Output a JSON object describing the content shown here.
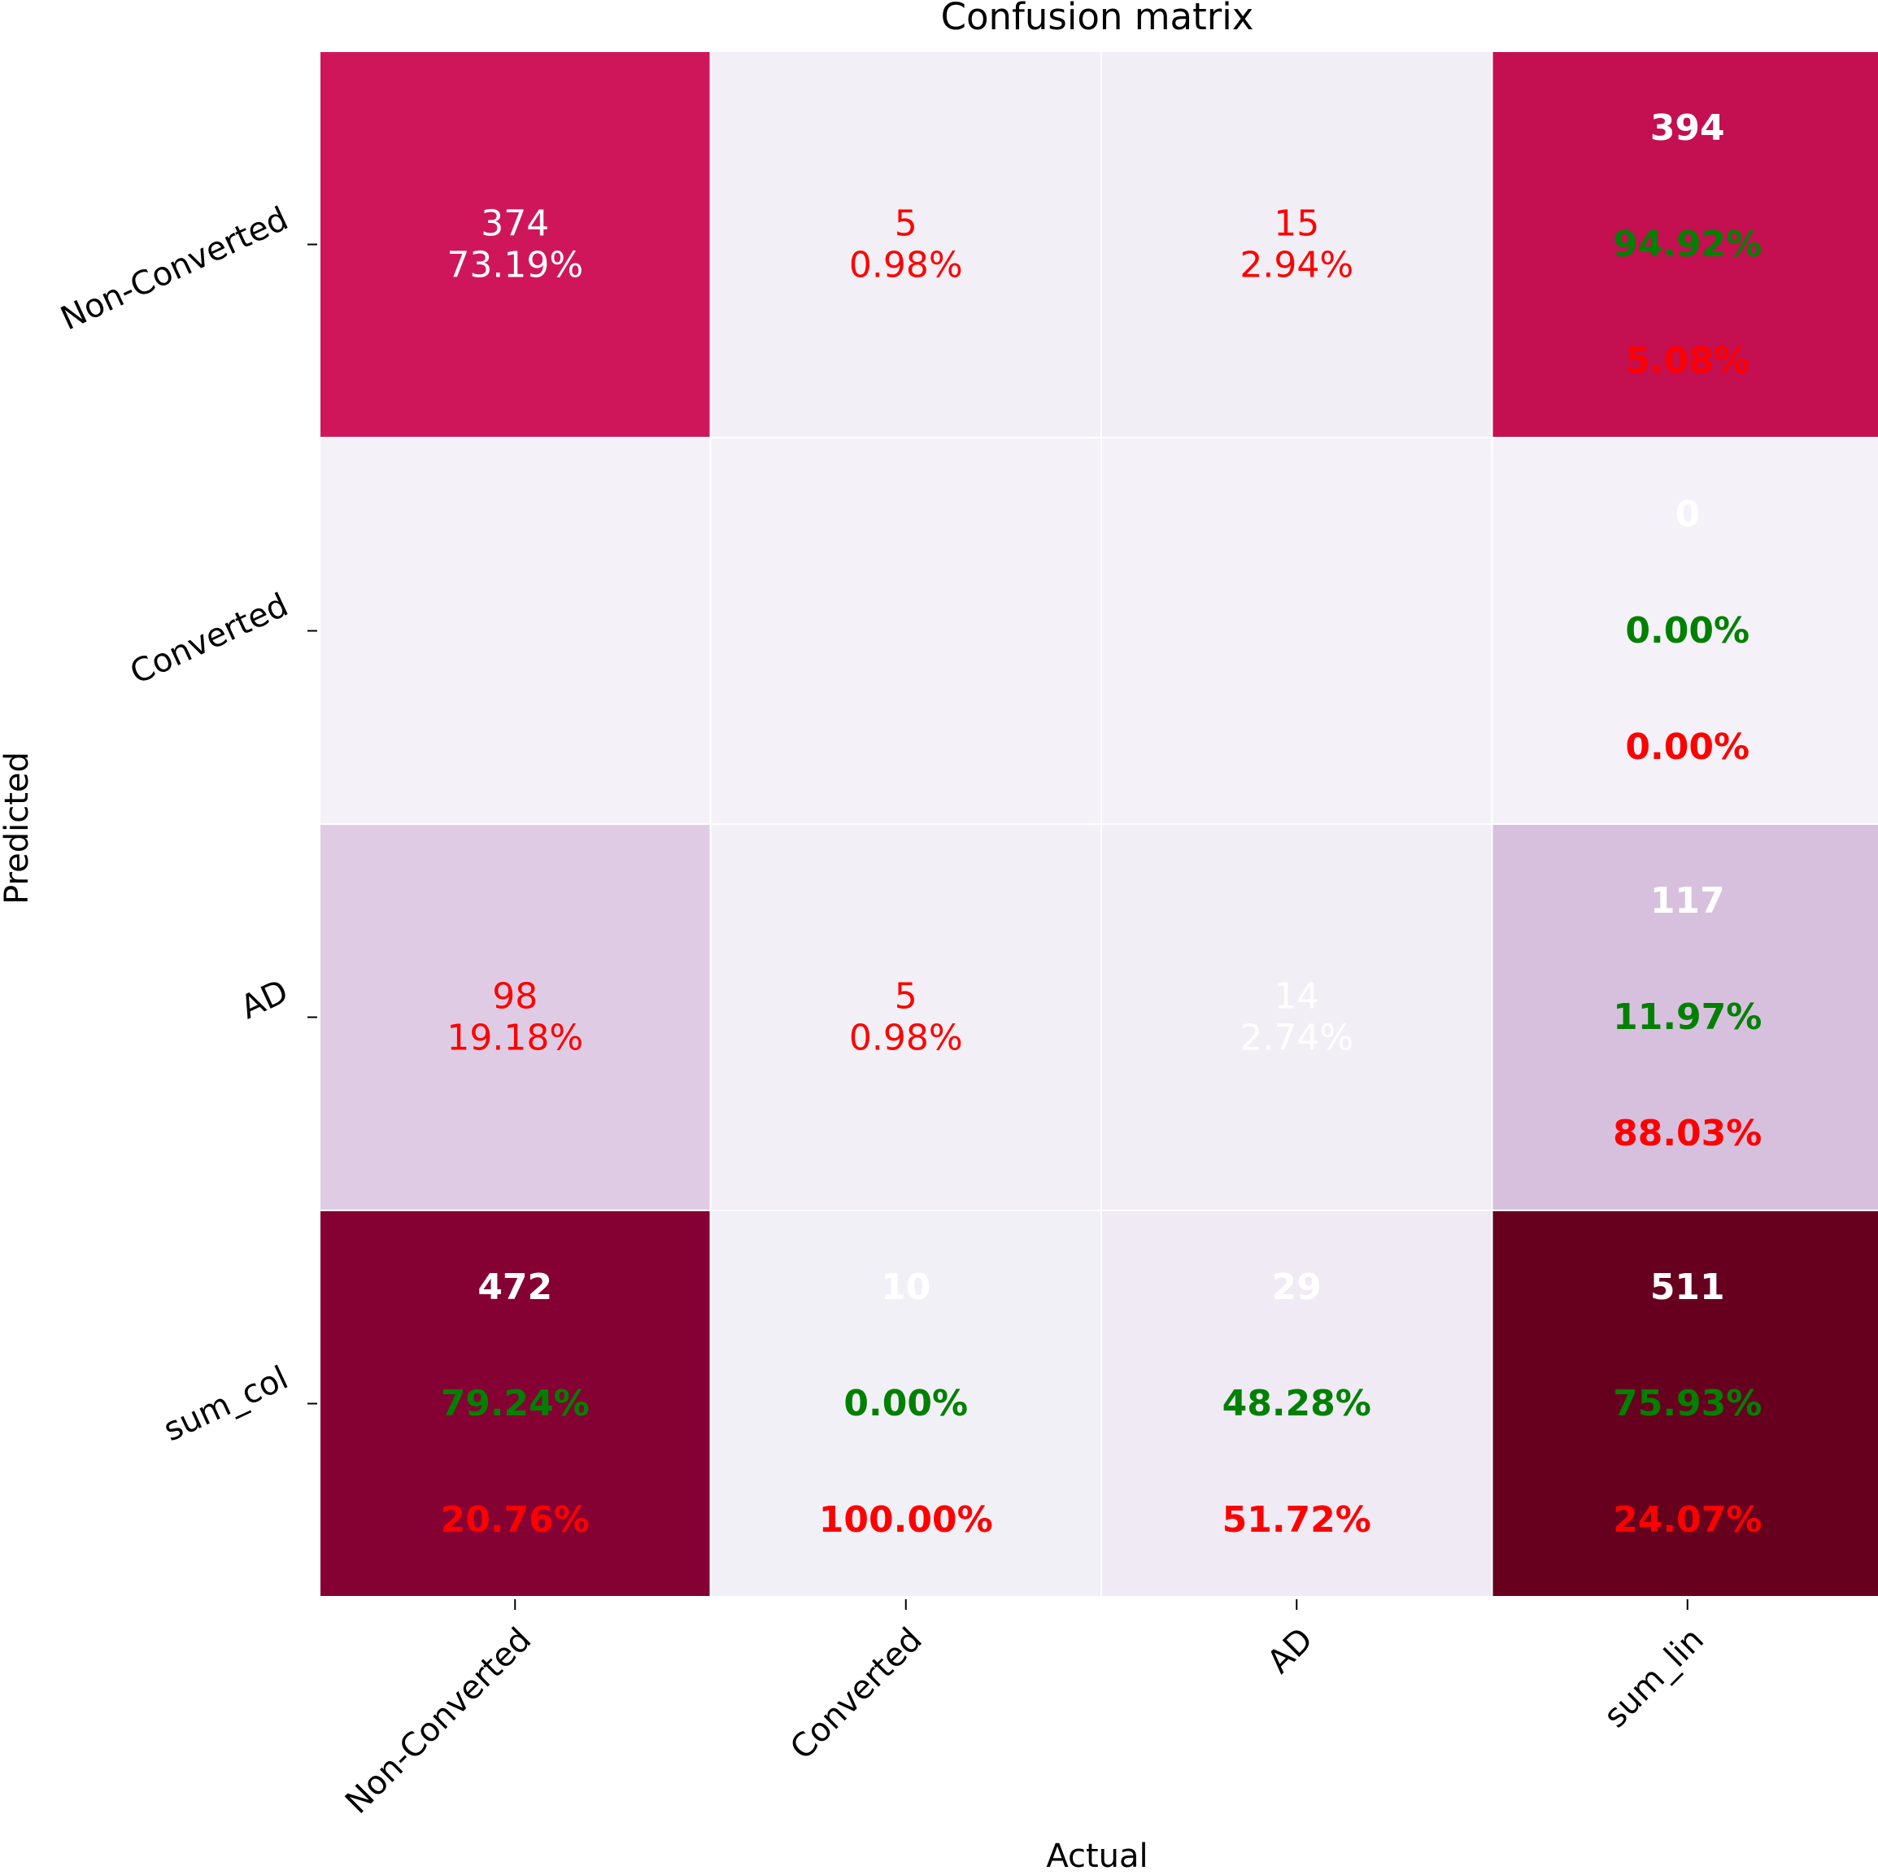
{
  "chart_data": {
    "type": "heatmap",
    "title": "Confusion matrix",
    "xlabel": "Actual",
    "ylabel": "Predicted",
    "x_categories": [
      "Non-Converted",
      "Converted",
      "AD",
      "sum_lin"
    ],
    "y_categories": [
      "Non-Converted",
      "Converted",
      "AD",
      "sum_col"
    ],
    "grid": true,
    "cells": [
      [
        {
          "value": 374,
          "lines": [
            {
              "text": "374",
              "color": "#ffffff",
              "bold": false
            },
            {
              "text": "73.19%",
              "color": "#ffffff",
              "bold": false
            }
          ],
          "fill": "#d0165a"
        },
        {
          "value": 5,
          "lines": [
            {
              "text": "5",
              "color": "#ff0000",
              "bold": false
            },
            {
              "text": "0.98%",
              "color": "#ff0000",
              "bold": false
            }
          ],
          "fill": "#f2eff6"
        },
        {
          "value": 15,
          "lines": [
            {
              "text": "15",
              "color": "#ff0000",
              "bold": false
            },
            {
              "text": "2.94%",
              "color": "#ff0000",
              "bold": false
            }
          ],
          "fill": "#f1eef6"
        },
        {
          "value": 394,
          "lines": [
            {
              "text": "394",
              "color": "#ffffff",
              "bold": true
            },
            {
              "text": "94.92%",
              "color": "#008000",
              "bold": true
            },
            {
              "text": "5.08%",
              "color": "#ff0000",
              "bold": true
            }
          ],
          "fill": "#c40f50"
        }
      ],
      [
        {
          "value": 0,
          "lines": [],
          "fill": "#f4f2f8"
        },
        {
          "value": 0,
          "lines": [],
          "fill": "#f4f2f8"
        },
        {
          "value": 0,
          "lines": [],
          "fill": "#f4f2f8"
        },
        {
          "value": 0,
          "lines": [
            {
              "text": "0",
              "color": "#ffffff",
              "bold": true
            },
            {
              "text": "0.00%",
              "color": "#008000",
              "bold": true
            },
            {
              "text": "0.00%",
              "color": "#ff0000",
              "bold": true
            }
          ],
          "fill": "#f4f2f8"
        }
      ],
      [
        {
          "value": 98,
          "lines": [
            {
              "text": "98",
              "color": "#ff0000",
              "bold": false
            },
            {
              "text": "19.18%",
              "color": "#ff0000",
              "bold": false
            }
          ],
          "fill": "#dfcce4"
        },
        {
          "value": 5,
          "lines": [
            {
              "text": "5",
              "color": "#ff0000",
              "bold": false
            },
            {
              "text": "0.98%",
              "color": "#ff0000",
              "bold": false
            }
          ],
          "fill": "#f2eff6"
        },
        {
          "value": 14,
          "lines": [
            {
              "text": "14",
              "color": "#ffffff",
              "bold": false
            },
            {
              "text": "2.74%",
              "color": "#ffffff",
              "bold": false
            }
          ],
          "fill": "#f1eef6"
        },
        {
          "value": 117,
          "lines": [
            {
              "text": "117",
              "color": "#ffffff",
              "bold": true
            },
            {
              "text": "11.97%",
              "color": "#008000",
              "bold": true
            },
            {
              "text": "88.03%",
              "color": "#ff0000",
              "bold": true
            }
          ],
          "fill": "#d7c0de"
        }
      ],
      [
        {
          "value": 472,
          "lines": [
            {
              "text": "472",
              "color": "#ffffff",
              "bold": true
            },
            {
              "text": "79.24%",
              "color": "#008000",
              "bold": true
            },
            {
              "text": "20.76%",
              "color": "#ff0000",
              "bold": true
            }
          ],
          "fill": "#850033"
        },
        {
          "value": 10,
          "lines": [
            {
              "text": "10",
              "color": "#ffffff",
              "bold": true
            },
            {
              "text": "0.00%",
              "color": "#008000",
              "bold": true
            },
            {
              "text": "100.00%",
              "color": "#ff0000",
              "bold": true
            }
          ],
          "fill": "#f2f0f7"
        },
        {
          "value": 29,
          "lines": [
            {
              "text": "29",
              "color": "#ffffff",
              "bold": true
            },
            {
              "text": "48.28%",
              "color": "#008000",
              "bold": true
            },
            {
              "text": "51.72%",
              "color": "#ff0000",
              "bold": true
            }
          ],
          "fill": "#efeaf4"
        },
        {
          "value": 511,
          "lines": [
            {
              "text": "511",
              "color": "#ffffff",
              "bold": true
            },
            {
              "text": "75.93%",
              "color": "#008000",
              "bold": true
            },
            {
              "text": "24.07%",
              "color": "#ff0000",
              "bold": true
            }
          ],
          "fill": "#67001f"
        }
      ]
    ]
  }
}
